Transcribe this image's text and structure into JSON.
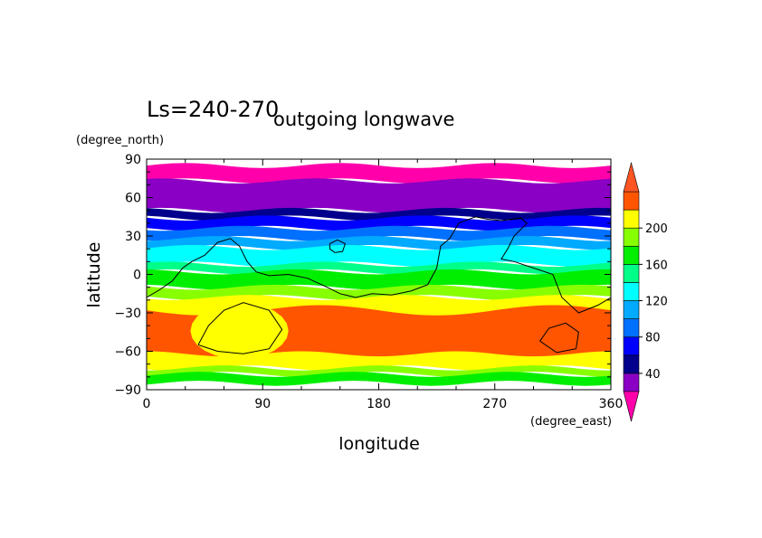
{
  "title_left": "Ls=240-270",
  "title_main": "outgoing longwave",
  "y_units": "(degree_north)",
  "x_units": "(degree_east)",
  "chart_data": {
    "type": "heatmap",
    "xlabel": "longitude",
    "ylabel": "latitude",
    "xlim": [
      0,
      360
    ],
    "ylim": [
      -90,
      90
    ],
    "x_ticks": [
      "0",
      "90",
      "180",
      "270",
      "360"
    ],
    "y_ticks": [
      "90",
      "60",
      "30",
      "0",
      "−30",
      "−60",
      "−90"
    ],
    "x_tick_values": [
      0,
      90,
      180,
      270,
      360
    ],
    "y_tick_values": [
      90,
      60,
      30,
      0,
      -30,
      -60,
      -90
    ],
    "colorbar": {
      "levels": [
        20,
        40,
        60,
        80,
        100,
        120,
        140,
        160,
        180,
        200,
        220
      ],
      "colors": [
        "#8a00c4",
        "#00008c",
        "#0000ff",
        "#0070ff",
        "#00aaff",
        "#00ffff",
        "#00ff88",
        "#00ee00",
        "#88ff00",
        "#ffff00",
        "#ff5500"
      ],
      "under_color": "#ff00aa",
      "over_color": "#ff5522",
      "labels": [
        "40",
        "80",
        "120",
        "160",
        "200"
      ],
      "label_values": [
        40,
        80,
        120,
        160,
        200
      ]
    },
    "bands": [
      {
        "color": "#ff00aa",
        "lat_top": 85,
        "lat_bottom": 73
      },
      {
        "color": "#8a00c4",
        "lat_top": 73,
        "lat_bottom": 50
      },
      {
        "color": "#00008c",
        "lat_top": 50,
        "lat_bottom": 44
      },
      {
        "color": "#0000ff",
        "lat_top": 44,
        "lat_bottom": 36
      },
      {
        "color": "#0070ff",
        "lat_top": 36,
        "lat_bottom": 28
      },
      {
        "color": "#00aaff",
        "lat_top": 28,
        "lat_bottom": 21
      },
      {
        "color": "#00ffff",
        "lat_top": 21,
        "lat_bottom": 8
      },
      {
        "color": "#00ff88",
        "lat_top": 8,
        "lat_bottom": 2
      },
      {
        "color": "#00ee00",
        "lat_top": 2,
        "lat_bottom": -10
      },
      {
        "color": "#88ff00",
        "lat_top": -10,
        "lat_bottom": -18
      },
      {
        "color": "#ffff00",
        "lat_top": -18,
        "lat_bottom": -73
      },
      {
        "color": "#88ff00",
        "lat_top": -73,
        "lat_bottom": -78
      },
      {
        "color": "#00ee00",
        "lat_top": -78,
        "lat_bottom": -85
      }
    ],
    "warm_region": {
      "color": "#ff5500",
      "lat_top": -28,
      "lat_bottom": -62
    },
    "contours": [
      {
        "name": "topography-main",
        "points": [
          [
            0,
            -18
          ],
          [
            10,
            -12
          ],
          [
            20,
            -5
          ],
          [
            28,
            5
          ],
          [
            35,
            10
          ],
          [
            45,
            15
          ],
          [
            55,
            25
          ],
          [
            65,
            28
          ],
          [
            72,
            22
          ],
          [
            78,
            10
          ],
          [
            85,
            2
          ],
          [
            95,
            -1
          ],
          [
            110,
            0
          ],
          [
            125,
            -3
          ],
          [
            140,
            -10
          ],
          [
            150,
            -15
          ],
          [
            162,
            -18
          ],
          [
            175,
            -15
          ],
          [
            190,
            -16
          ],
          [
            205,
            -13
          ],
          [
            218,
            -8
          ],
          [
            225,
            5
          ],
          [
            228,
            22
          ],
          [
            235,
            28
          ],
          [
            242,
            40
          ],
          [
            255,
            45
          ],
          [
            265,
            43
          ],
          [
            275,
            42
          ],
          [
            290,
            44
          ],
          [
            295,
            40
          ],
          [
            285,
            30
          ],
          [
            280,
            20
          ],
          [
            275,
            12
          ],
          [
            285,
            10
          ],
          [
            300,
            5
          ],
          [
            315,
            0
          ],
          [
            322,
            -18
          ],
          [
            335,
            -30
          ],
          [
            350,
            -24
          ],
          [
            360,
            -18
          ]
        ]
      },
      {
        "name": "small-loop",
        "points": [
          [
            142,
            24
          ],
          [
            148,
            27
          ],
          [
            154,
            24
          ],
          [
            152,
            18
          ],
          [
            146,
            17
          ],
          [
            142,
            20
          ],
          [
            142,
            24
          ]
        ]
      },
      {
        "name": "loop-west",
        "points": [
          [
            40,
            -55
          ],
          [
            48,
            -40
          ],
          [
            60,
            -28
          ],
          [
            75,
            -22
          ],
          [
            95,
            -28
          ],
          [
            105,
            -43
          ],
          [
            95,
            -58
          ],
          [
            75,
            -62
          ],
          [
            55,
            -60
          ],
          [
            40,
            -55
          ]
        ]
      },
      {
        "name": "loop-east",
        "points": [
          [
            305,
            -52
          ],
          [
            312,
            -42
          ],
          [
            325,
            -38
          ],
          [
            335,
            -45
          ],
          [
            333,
            -58
          ],
          [
            318,
            -61
          ],
          [
            305,
            -52
          ]
        ]
      }
    ]
  }
}
